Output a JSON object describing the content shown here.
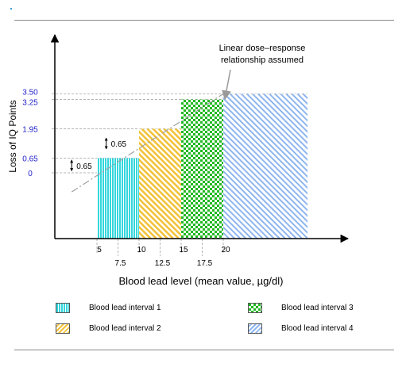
{
  "chart_data": {
    "type": "bar",
    "xlabel": "Blood lead level (mean value, µg/dl)",
    "ylabel": "Loss of  IQ Points",
    "x_ticks_major": [
      "5",
      "10",
      "15",
      "20"
    ],
    "x_ticks_minor": [
      "7.5",
      "12.5",
      "17.5"
    ],
    "y_ticks": [
      "0",
      "0.65",
      "1.95",
      "3.25",
      "3.50"
    ],
    "xlim": [
      0,
      30
    ],
    "ylim": [
      -2.3,
      4.4
    ],
    "bars": [
      {
        "name": "Blood lead interval 1",
        "x_start": 5,
        "x_end": 10,
        "value": 0.65,
        "color": "#33d6dc",
        "pattern": "vertical"
      },
      {
        "name": "Blood lead interval 2",
        "x_start": 10,
        "x_end": 15,
        "value": 1.95,
        "color": "#f2c23a",
        "pattern": "diagonal"
      },
      {
        "name": "Blood lead interval 3",
        "x_start": 15,
        "x_end": 20,
        "value": 3.25,
        "color": "#22b822",
        "pattern": "checker"
      },
      {
        "name": "Blood lead interval 4",
        "x_start": 20,
        "x_end": 30,
        "value": 3.5,
        "color": "#8fb6ef",
        "pattern": "diagonal"
      }
    ],
    "dose_response_line": {
      "x": [
        2,
        20
      ],
      "y": [
        -0.85,
        3.5
      ]
    },
    "step_annotations": [
      "0.65",
      "0.65"
    ],
    "annotation": "Linear dose–response\nrelationship assumed"
  }
}
